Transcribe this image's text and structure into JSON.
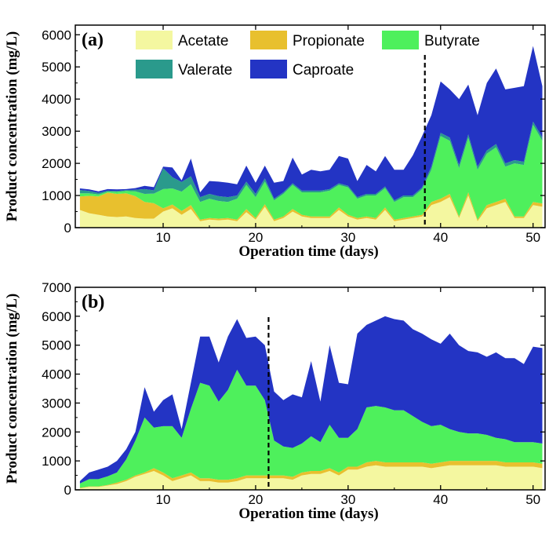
{
  "colors": {
    "Acetate": "#f4f7a0",
    "Propionate": "#e8c02e",
    "Butyrate": "#4ef05c",
    "Valerate": "#2a9a8c",
    "Caproate": "#2334c4"
  },
  "chart_data": [
    {
      "type": "area",
      "stacked": true,
      "panel_label": "(a)",
      "xlabel": "Operation time (days)",
      "ylabel": "Product concentration (mg/L)",
      "xlim": [
        0.5,
        51.3
      ],
      "ylim": [
        0,
        6300
      ],
      "xticks": [
        10,
        20,
        30,
        40,
        50
      ],
      "yticks": [
        0,
        1000,
        2000,
        3000,
        4000,
        5000,
        6000
      ],
      "dashed_line_x": 38.3,
      "legend_position": "top-left",
      "x": [
        1,
        2,
        3,
        4,
        5,
        6,
        7,
        8,
        9,
        10,
        11,
        12,
        13,
        14,
        15,
        16,
        17,
        18,
        19,
        20,
        21,
        22,
        23,
        24,
        25,
        26,
        27,
        28,
        29,
        30,
        31,
        32,
        33,
        34,
        35,
        36,
        37,
        38,
        39,
        40,
        41,
        42,
        43,
        44,
        45,
        46,
        47,
        48,
        49,
        50,
        51
      ],
      "series": [
        {
          "name": "Acetate",
          "values": [
            550,
            450,
            400,
            350,
            330,
            350,
            300,
            280,
            280,
            500,
            600,
            400,
            580,
            200,
            250,
            230,
            250,
            200,
            480,
            250,
            650,
            200,
            300,
            500,
            350,
            300,
            300,
            300,
            550,
            350,
            250,
            300,
            250,
            550,
            200,
            250,
            300,
            350,
            700,
            800,
            950,
            300,
            1000,
            200,
            600,
            700,
            800,
            300,
            300,
            700,
            650
          ]
        },
        {
          "name": "Propionate",
          "values": [
            420,
            540,
            570,
            740,
            720,
            720,
            680,
            520,
            480,
            100,
            120,
            120,
            120,
            50,
            50,
            50,
            50,
            50,
            100,
            50,
            80,
            50,
            50,
            80,
            50,
            50,
            50,
            50,
            80,
            50,
            50,
            50,
            50,
            80,
            50,
            50,
            50,
            50,
            100,
            100,
            100,
            50,
            100,
            50,
            100,
            100,
            100,
            50,
            50,
            100,
            100
          ]
        },
        {
          "name": "Butyrate",
          "values": [
            100,
            80,
            60,
            30,
            60,
            70,
            150,
            250,
            300,
            600,
            500,
            600,
            650,
            550,
            600,
            550,
            500,
            650,
            750,
            650,
            700,
            600,
            700,
            750,
            700,
            750,
            750,
            800,
            700,
            850,
            600,
            650,
            700,
            600,
            550,
            650,
            600,
            800,
            1000,
            1950,
            1650,
            1500,
            1700,
            1550,
            1600,
            1700,
            1000,
            1650,
            1600,
            2400,
            1950
          ]
        },
        {
          "name": "Valerate",
          "values": [
            100,
            70,
            50,
            30,
            30,
            30,
            50,
            150,
            100,
            650,
            350,
            300,
            250,
            150,
            150,
            150,
            150,
            100,
            100,
            100,
            100,
            50,
            50,
            50,
            50,
            50,
            50,
            50,
            50,
            50,
            50,
            50,
            50,
            50,
            50,
            50,
            50,
            50,
            100,
            100,
            100,
            100,
            100,
            100,
            100,
            100,
            100,
            100,
            100,
            100,
            100
          ]
        },
        {
          "name": "Caproate",
          "values": [
            50,
            50,
            50,
            50,
            50,
            30,
            50,
            100,
            100,
            50,
            300,
            50,
            550,
            150,
            400,
            450,
            450,
            350,
            500,
            350,
            400,
            500,
            350,
            800,
            500,
            650,
            600,
            600,
            850,
            850,
            500,
            900,
            700,
            950,
            950,
            800,
            1250,
            1600,
            1600,
            1600,
            1500,
            2050,
            1550,
            1600,
            2100,
            2350,
            2300,
            2250,
            2350,
            2350,
            1600
          ]
        }
      ]
    },
    {
      "type": "area",
      "stacked": true,
      "panel_label": "(b)",
      "xlabel": "Operation time (days)",
      "ylabel": "Product concentration (mg/L)",
      "xlim": [
        0.5,
        51.3
      ],
      "ylim": [
        0,
        7000
      ],
      "xticks": [
        10,
        20,
        30,
        40,
        50
      ],
      "yticks": [
        0,
        1000,
        2000,
        3000,
        4000,
        5000,
        6000,
        7000
      ],
      "dashed_line_x": 21.4,
      "legend_position": "top-left",
      "x": [
        1,
        2,
        3,
        4,
        5,
        6,
        7,
        8,
        9,
        10,
        11,
        12,
        13,
        14,
        15,
        16,
        17,
        18,
        19,
        20,
        21,
        22,
        23,
        24,
        25,
        26,
        27,
        28,
        29,
        30,
        31,
        32,
        33,
        34,
        35,
        36,
        37,
        38,
        39,
        40,
        41,
        42,
        43,
        44,
        45,
        46,
        47,
        48,
        49,
        50,
        51
      ],
      "series": [
        {
          "name": "Acetate",
          "values": [
            50,
            100,
            100,
            150,
            200,
            300,
            450,
            550,
            650,
            500,
            300,
            400,
            500,
            300,
            300,
            250,
            250,
            300,
            400,
            400,
            400,
            400,
            400,
            350,
            500,
            550,
            550,
            650,
            500,
            700,
            700,
            800,
            850,
            800,
            800,
            800,
            800,
            800,
            750,
            800,
            850,
            850,
            850,
            850,
            850,
            850,
            800,
            800,
            800,
            800,
            750
          ]
        },
        {
          "name": "Propionate",
          "values": [
            20,
            20,
            20,
            20,
            50,
            50,
            50,
            50,
            100,
            100,
            100,
            100,
            100,
            100,
            100,
            100,
            100,
            100,
            100,
            100,
            100,
            100,
            100,
            100,
            100,
            100,
            100,
            100,
            100,
            100,
            100,
            150,
            150,
            150,
            150,
            150,
            150,
            150,
            150,
            150,
            150,
            150,
            150,
            150,
            150,
            150,
            150,
            150,
            150,
            150,
            150
          ]
        },
        {
          "name": "Butyrate",
          "values": [
            150,
            250,
            250,
            300,
            350,
            700,
            1200,
            1900,
            1400,
            1600,
            1800,
            1300,
            2200,
            3300,
            3200,
            2700,
            3100,
            3750,
            3100,
            3100,
            2600,
            1200,
            1000,
            1000,
            1000,
            1200,
            1000,
            1500,
            1200,
            1000,
            1300,
            1900,
            1900,
            1900,
            1800,
            1800,
            1600,
            1400,
            1300,
            1300,
            1100,
            1000,
            950,
            950,
            900,
            800,
            800,
            700,
            700,
            700,
            700
          ]
        },
        {
          "name": "Valerate",
          "values": [
            0,
            0,
            0,
            0,
            0,
            0,
            0,
            0,
            0,
            0,
            0,
            0,
            0,
            0,
            0,
            0,
            0,
            0,
            0,
            0,
            0,
            0,
            0,
            0,
            0,
            0,
            0,
            0,
            0,
            0,
            0,
            0,
            0,
            0,
            0,
            0,
            0,
            0,
            0,
            0,
            0,
            0,
            0,
            0,
            0,
            0,
            0,
            0,
            0,
            0,
            0
          ]
        },
        {
          "name": "Caproate",
          "values": [
            80,
            230,
            330,
            330,
            400,
            350,
            300,
            1050,
            550,
            900,
            1100,
            300,
            900,
            1600,
            1700,
            1350,
            1850,
            1750,
            1650,
            1700,
            1900,
            1700,
            1600,
            1850,
            1600,
            2600,
            1400,
            2750,
            1900,
            1850,
            3300,
            2850,
            2950,
            3150,
            3150,
            3100,
            3000,
            3050,
            3000,
            2800,
            3300,
            3000,
            2850,
            2800,
            2700,
            2950,
            2800,
            2900,
            2700,
            3300,
            3300
          ]
        }
      ]
    }
  ]
}
